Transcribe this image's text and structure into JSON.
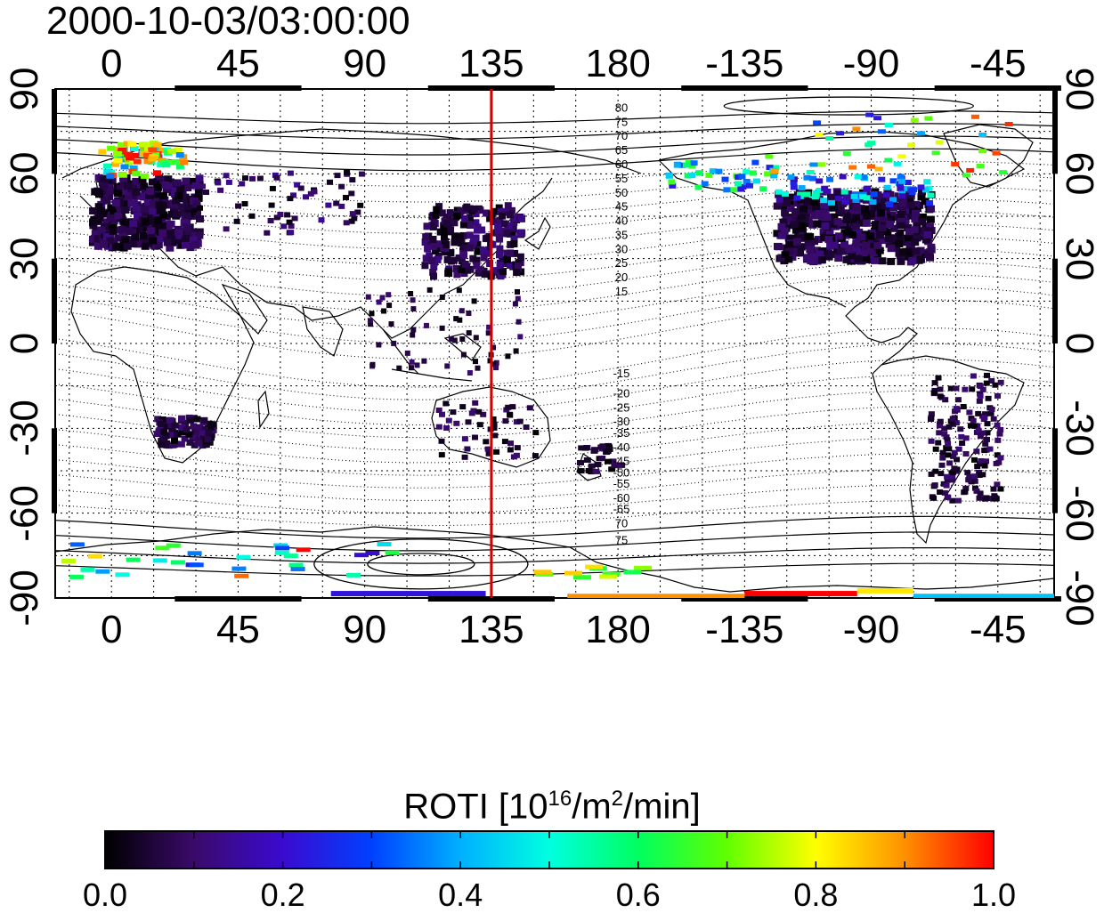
{
  "title": "2000-10-03/03:00:00",
  "map": {
    "lon_ticks_top": [
      "0",
      "45",
      "90",
      "135",
      "180",
      "-135",
      "-90",
      "-45"
    ],
    "lon_ticks_bottom": [
      "0",
      "45",
      "90",
      "135",
      "180",
      "-135",
      "-90",
      "-45"
    ],
    "lat_ticks_left": [
      "90",
      "60",
      "30",
      "0",
      "-30",
      "-60",
      "-90"
    ],
    "lat_ticks_right": [
      "90",
      "60",
      "30",
      "0",
      "-30",
      "-60",
      "-90"
    ],
    "lon_range": [
      -20,
      335
    ],
    "lat_range": [
      -90,
      90
    ],
    "meridian_marker_lon": 135,
    "marker_color": "#d40000",
    "magnetic_lat_labels_north": [
      "80",
      "75",
      "70",
      "65",
      "60",
      "55",
      "50",
      "45",
      "40",
      "35",
      "30",
      "25",
      "20",
      "15"
    ],
    "magnetic_lat_labels_south": [
      "-15",
      "-20",
      "-25",
      "-30",
      "-35",
      "-40",
      "-45",
      "-50",
      "-55",
      "-60",
      "-65",
      "70",
      "75"
    ],
    "grid": true
  },
  "colorbar": {
    "label_main": "ROTI  [10",
    "label_sup1": "16",
    "label_mid": "/m",
    "label_sup2": "2",
    "label_end": "/min]",
    "ticks": [
      "0.0",
      "0.2",
      "0.4",
      "0.6",
      "0.8",
      "1.0"
    ],
    "range": [
      0.0,
      1.0
    ],
    "colors": [
      "#000000",
      "#3a0a6a",
      "#3a0ad0",
      "#0040ff",
      "#00b0ff",
      "#00ffe0",
      "#00ff60",
      "#60ff00",
      "#ffff00",
      "#ff9000",
      "#ff0000"
    ]
  }
}
